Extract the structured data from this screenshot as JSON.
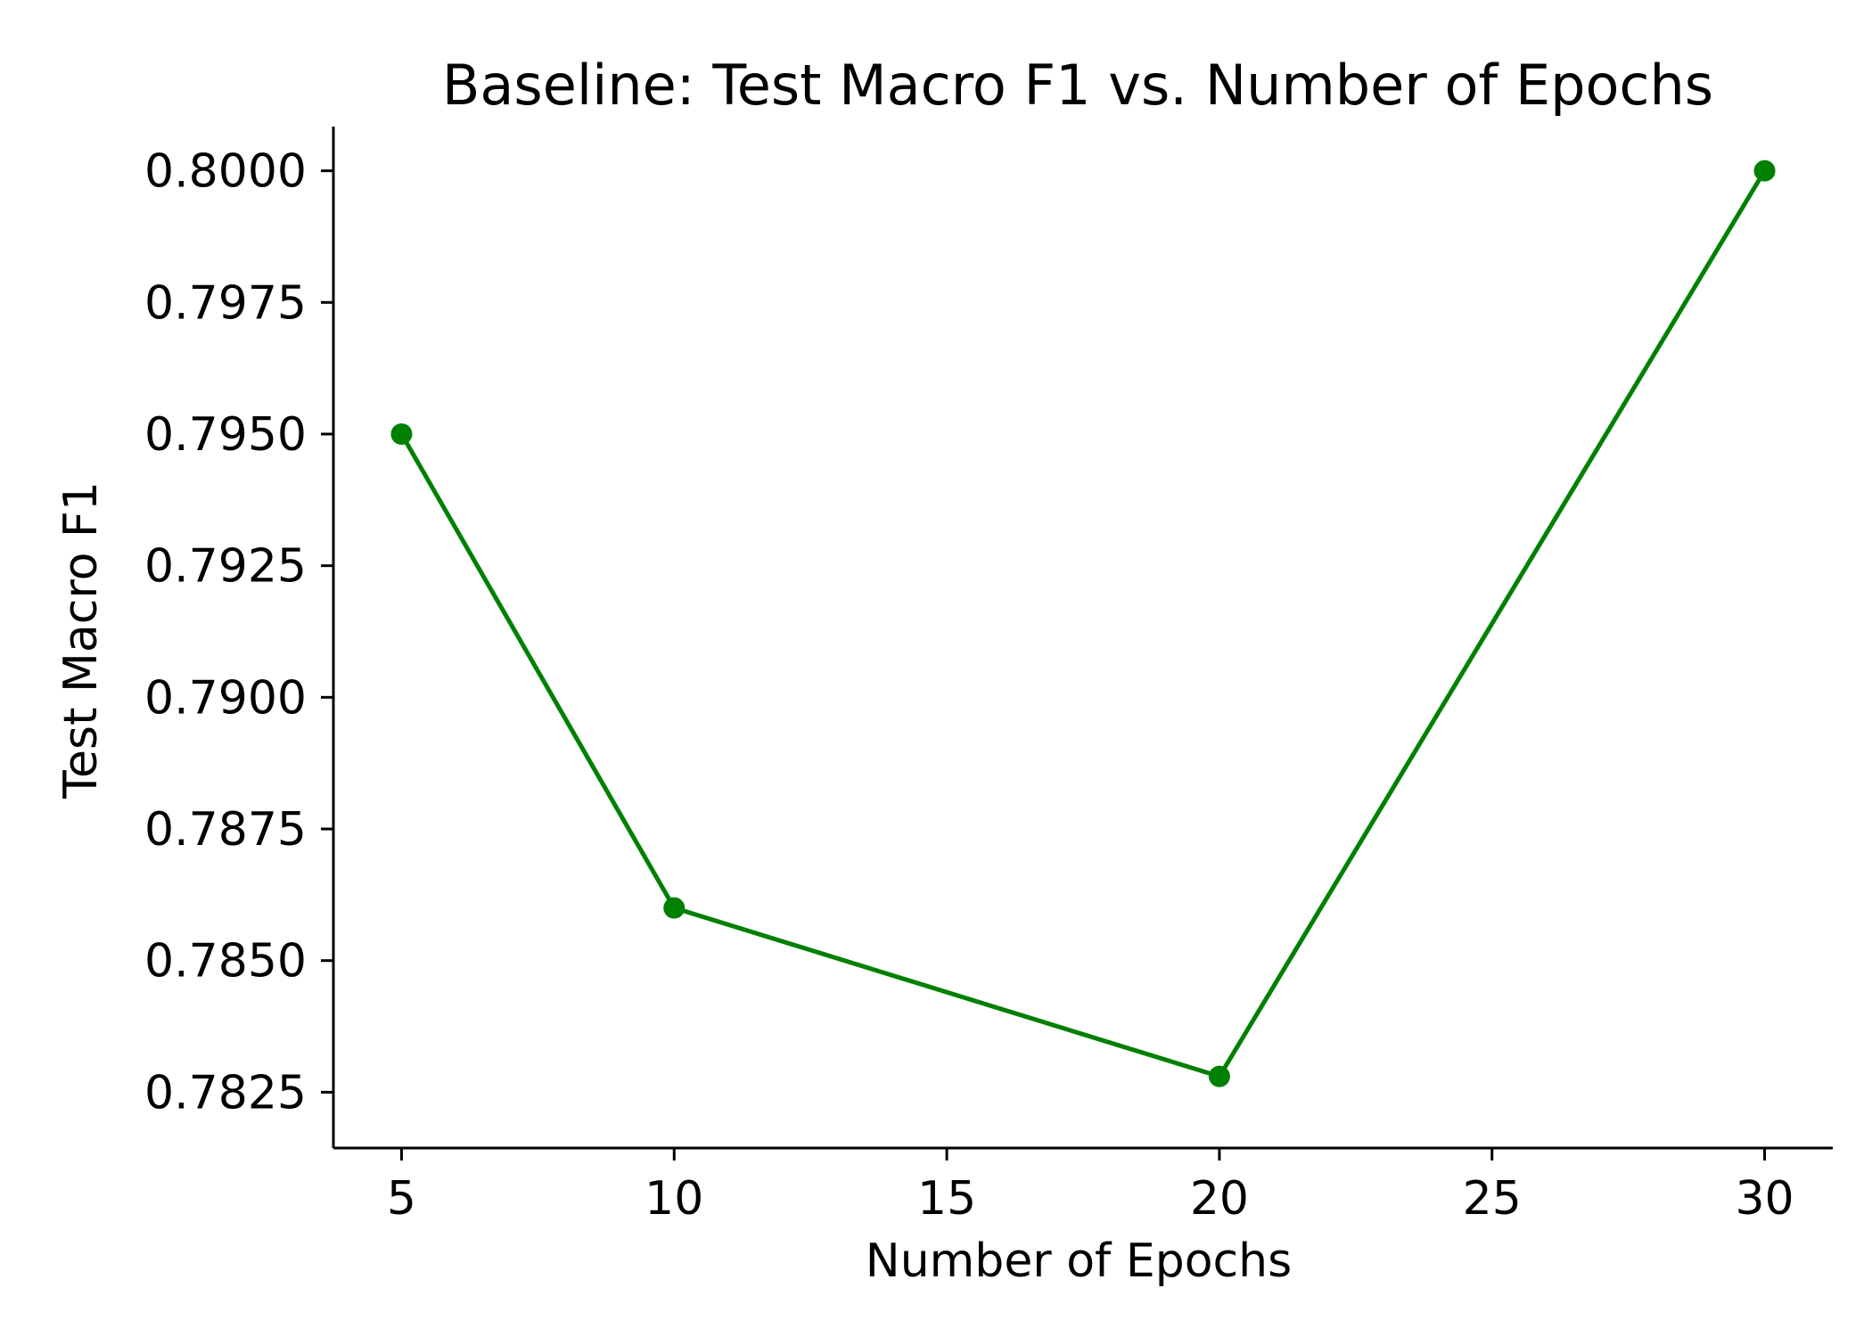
{
  "chart_data": {
    "type": "line",
    "title": "Baseline: Test Macro F1 vs. Number of Epochs",
    "xlabel": "Number of Epochs",
    "ylabel": "Test Macro F1",
    "x": [
      5,
      10,
      20,
      30
    ],
    "y": [
      0.795,
      0.786,
      0.7828,
      0.8
    ],
    "xlim": [
      3.75,
      31.25
    ],
    "ylim": [
      0.78144,
      0.80084
    ],
    "xticks": [
      5,
      10,
      15,
      20,
      25,
      30
    ],
    "xtick_labels": [
      "5",
      "10",
      "15",
      "20",
      "25",
      "30"
    ],
    "yticks": [
      0.7825,
      0.785,
      0.7875,
      0.79,
      0.7925,
      0.795,
      0.7975,
      0.8
    ],
    "ytick_labels": [
      "0.7825",
      "0.7850",
      "0.7875",
      "0.7900",
      "0.7925",
      "0.7950",
      "0.7975",
      "0.8000"
    ],
    "color": "#008000",
    "marker": "circle",
    "grid": false,
    "legend": false,
    "spines": "left-bottom"
  }
}
